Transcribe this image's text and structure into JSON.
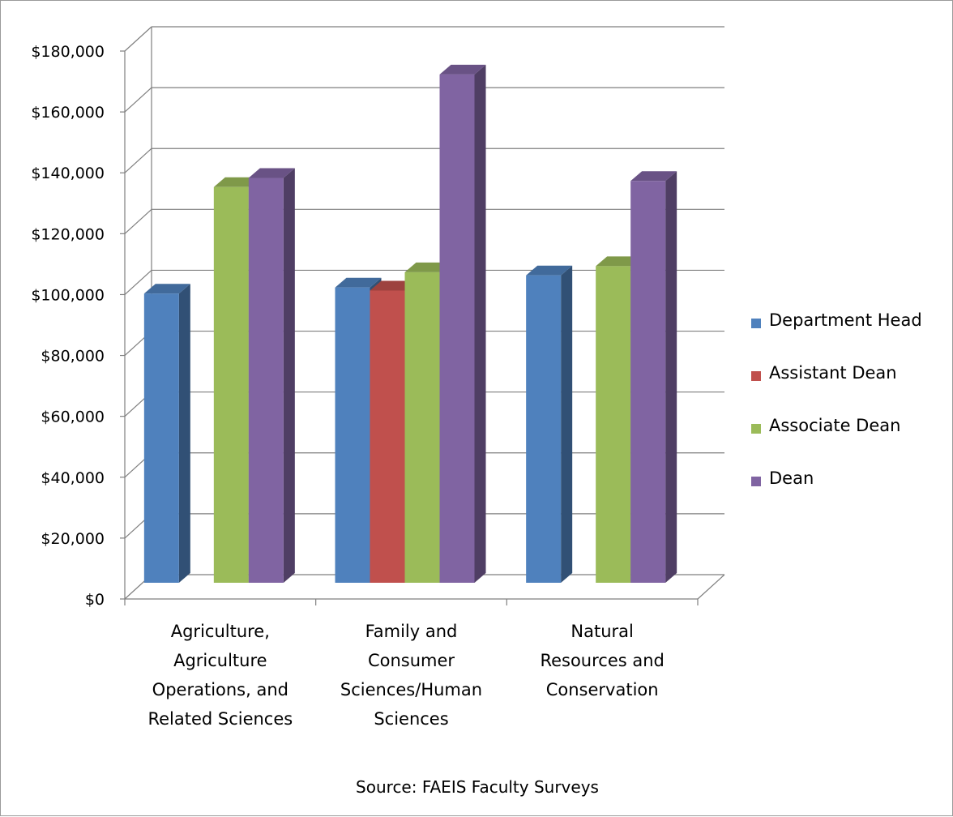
{
  "chart_data": {
    "type": "bar",
    "categories": [
      [
        "Agriculture,",
        "Agriculture",
        "Operations, and",
        "Related Sciences"
      ],
      [
        "Family and",
        "Consumer",
        "Sciences/Human",
        "Sciences"
      ],
      [
        "Natural",
        "Resources and",
        "Conservation"
      ]
    ],
    "series": [
      {
        "name": "Department Head",
        "color": "#4f81bd",
        "values": [
          95000,
          97000,
          101000
        ]
      },
      {
        "name": "Assistant Dean",
        "color": "#c0504d",
        "values": [
          null,
          96000,
          null
        ]
      },
      {
        "name": "Associate Dean",
        "color": "#9bbb59",
        "values": [
          130000,
          102000,
          104000
        ]
      },
      {
        "name": "Dean",
        "color": "#8064a2",
        "values": [
          133000,
          167000,
          132000
        ]
      }
    ],
    "ylim": [
      0,
      180000
    ],
    "yticks": [
      "$0",
      "$20,000",
      "$40,000",
      "$60,000",
      "$80,000",
      "$100,000",
      "$120,000",
      "$140,000",
      "$160,000",
      "$180,000"
    ],
    "legend_position": "right",
    "grid": true,
    "three_d": true,
    "source": "Source: FAEIS Faculty Surveys"
  }
}
